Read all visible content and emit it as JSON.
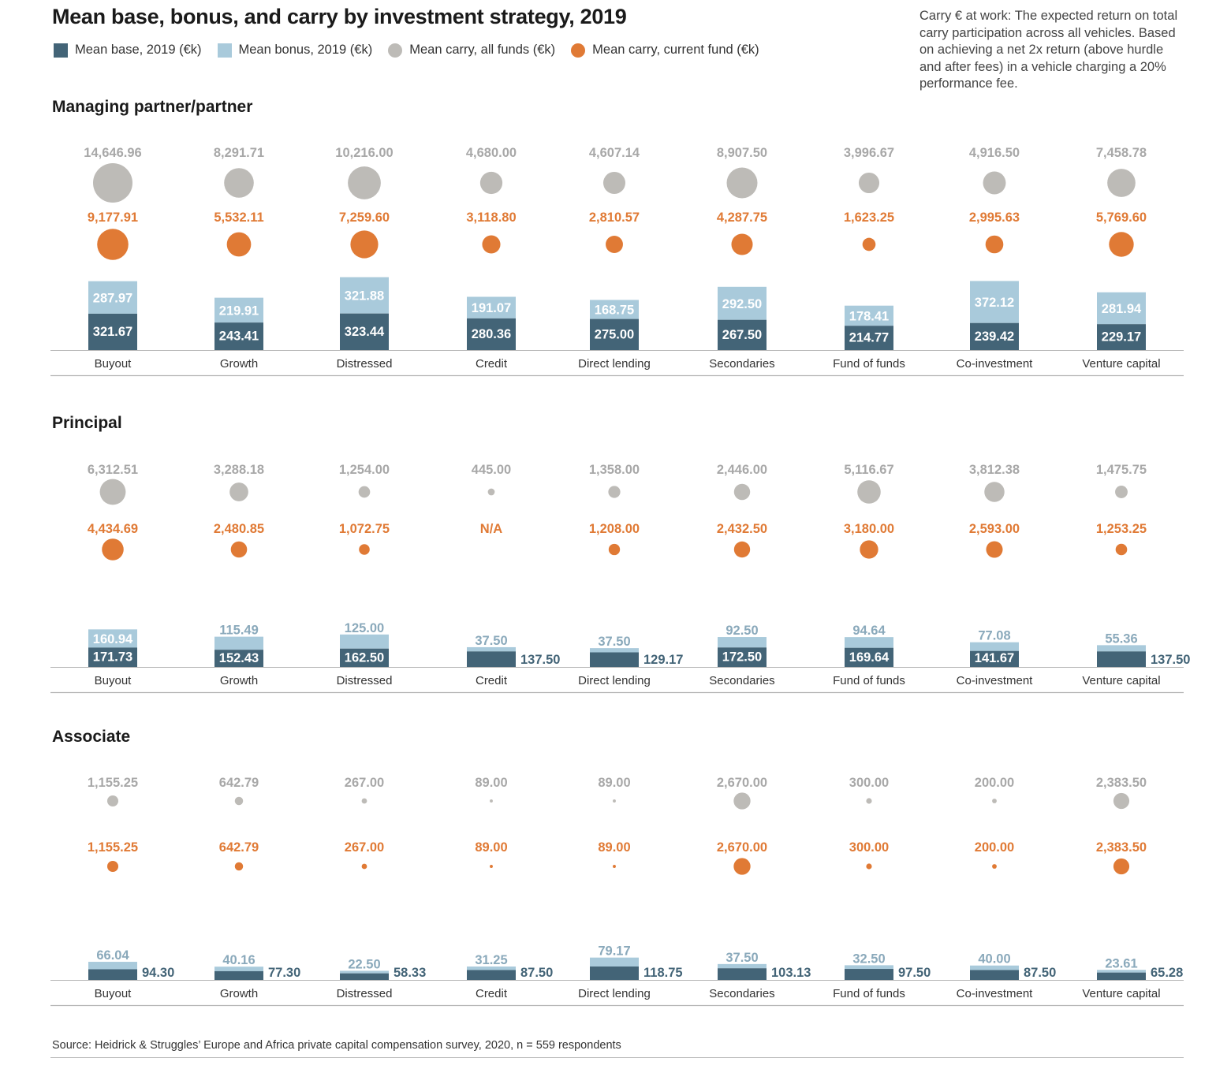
{
  "title": "Mean base, bonus, and carry by investment strategy, 2019",
  "legend": {
    "base": "Mean base, 2019 (€k)",
    "bonus": "Mean bonus, 2019 (€k)",
    "carry_all": "Mean carry, all funds (€k)",
    "carry_current": "Mean carry, current fund (€k)"
  },
  "note": "Carry € at work: The expected return on total carry participation across all vehicles. Based on achieving a net 2x return (above hurdle and after fees) in a vehicle charging a 20% performance fee.",
  "source": "Source: Heidrick & Struggles’ Europe and Africa private capital compensation survey, 2020, n = 559 respondents",
  "colors": {
    "base": "#436477",
    "bonus": "#a9cadb",
    "carry_all": "#bdbbb7",
    "carry_current": "#e07a35",
    "carry_all_text": "#a8a8a8",
    "bonus_text": "#8aa9bb"
  },
  "chart_data": {
    "type": "bar",
    "stacked": true,
    "categories": [
      "Buyout",
      "Growth",
      "Distressed",
      "Credit",
      "Direct lending",
      "Secondaries",
      "Fund of funds",
      "Co-investment",
      "Venture capital"
    ],
    "panels": [
      {
        "title": "Managing partner/partner",
        "series": [
          {
            "name": "Mean base, 2019 (€k)",
            "values": [
              321.67,
              243.41,
              323.44,
              280.36,
              275.0,
              267.5,
              214.77,
              239.42,
              229.17
            ],
            "labels": [
              "321.67",
              "243.41",
              "323.44",
              "280.36",
              "275.00",
              "267.50",
              "214.77",
              "239.42",
              "229.17"
            ]
          },
          {
            "name": "Mean bonus, 2019 (€k)",
            "values": [
              287.97,
              219.91,
              321.88,
              191.07,
              168.75,
              292.5,
              178.41,
              372.12,
              281.94
            ],
            "labels": [
              "287.97",
              "219.91",
              "321.88",
              "191.07",
              "168.75",
              "292.50",
              "178.41",
              "372.12",
              "281.94"
            ]
          },
          {
            "name": "Mean carry, all funds (€k)",
            "values": [
              14646.96,
              8291.71,
              10216.0,
              4680.0,
              4607.14,
              8907.5,
              3996.67,
              4916.5,
              7458.78
            ],
            "labels": [
              "14,646.96",
              "8,291.71",
              "10,216.00",
              "4,680.00",
              "4,607.14",
              "8,907.50",
              "3,996.67",
              "4,916.50",
              "7,458.78"
            ]
          },
          {
            "name": "Mean carry, current fund (€k)",
            "values": [
              9177.91,
              5532.11,
              7259.6,
              3118.8,
              2810.57,
              4287.75,
              1623.25,
              2995.63,
              5769.6
            ],
            "labels": [
              "9,177.91",
              "5,532.11",
              "7,259.60",
              "3,118.80",
              "2,810.57",
              "4,287.75",
              "1,623.25",
              "2,995.63",
              "5,769.60"
            ]
          }
        ]
      },
      {
        "title": "Principal",
        "series": [
          {
            "name": "Mean base, 2019 (€k)",
            "values": [
              171.73,
              152.43,
              162.5,
              137.5,
              129.17,
              172.5,
              169.64,
              141.67,
              137.5
            ],
            "labels": [
              "171.73",
              "152.43",
              "162.50",
              "137.50",
              "129.17",
              "172.50",
              "169.64",
              "141.67",
              "137.50"
            ]
          },
          {
            "name": "Mean bonus, 2019 (€k)",
            "values": [
              160.94,
              115.49,
              125.0,
              37.5,
              37.5,
              92.5,
              94.64,
              77.08,
              55.36
            ],
            "labels": [
              "160.94",
              "115.49",
              "125.00",
              "37.50",
              "37.50",
              "92.50",
              "94.64",
              "77.08",
              "55.36"
            ]
          },
          {
            "name": "Mean carry, all funds (€k)",
            "values": [
              6312.51,
              3288.18,
              1254.0,
              445.0,
              1358.0,
              2446.0,
              5116.67,
              3812.38,
              1475.75
            ],
            "labels": [
              "6,312.51",
              "3,288.18",
              "1,254.00",
              "445.00",
              "1,358.00",
              "2,446.00",
              "5,116.67",
              "3,812.38",
              "1,475.75"
            ]
          },
          {
            "name": "Mean carry, current fund (€k)",
            "values": [
              4434.69,
              2480.85,
              1072.75,
              null,
              1208.0,
              2432.5,
              3180.0,
              2593.0,
              1253.25
            ],
            "labels": [
              "4,434.69",
              "2,480.85",
              "1,072.75",
              "N/A",
              "1,208.00",
              "2,432.50",
              "3,180.00",
              "2,593.00",
              "1,253.25"
            ]
          }
        ]
      },
      {
        "title": "Associate",
        "series": [
          {
            "name": "Mean base, 2019 (€k)",
            "values": [
              94.3,
              77.3,
              58.33,
              87.5,
              118.75,
              103.13,
              97.5,
              87.5,
              65.28
            ],
            "labels": [
              "94.30",
              "77.30",
              "58.33",
              "87.50",
              "118.75",
              "103.13",
              "97.50",
              "87.50",
              "65.28"
            ]
          },
          {
            "name": "Mean bonus, 2019 (€k)",
            "values": [
              66.04,
              40.16,
              22.5,
              31.25,
              79.17,
              37.5,
              32.5,
              40.0,
              23.61
            ],
            "labels": [
              "66.04",
              "40.16",
              "22.50",
              "31.25",
              "79.17",
              "37.50",
              "32.50",
              "40.00",
              "23.61"
            ]
          },
          {
            "name": "Mean carry, all funds (€k)",
            "values": [
              1155.25,
              642.79,
              267.0,
              89.0,
              89.0,
              2670.0,
              300.0,
              200.0,
              2383.5
            ],
            "labels": [
              "1,155.25",
              "642.79",
              "267.00",
              "89.00",
              "89.00",
              "2,670.00",
              "300.00",
              "200.00",
              "2,383.50"
            ]
          },
          {
            "name": "Mean carry, current fund (€k)",
            "values": [
              1155.25,
              642.79,
              267.0,
              89.0,
              89.0,
              2670.0,
              300.0,
              200.0,
              2383.5
            ],
            "labels": [
              "1,155.25",
              "642.79",
              "267.00",
              "89.00",
              "89.00",
              "2,670.00",
              "300.00",
              "200.00",
              "2,383.50"
            ]
          }
        ]
      }
    ]
  }
}
